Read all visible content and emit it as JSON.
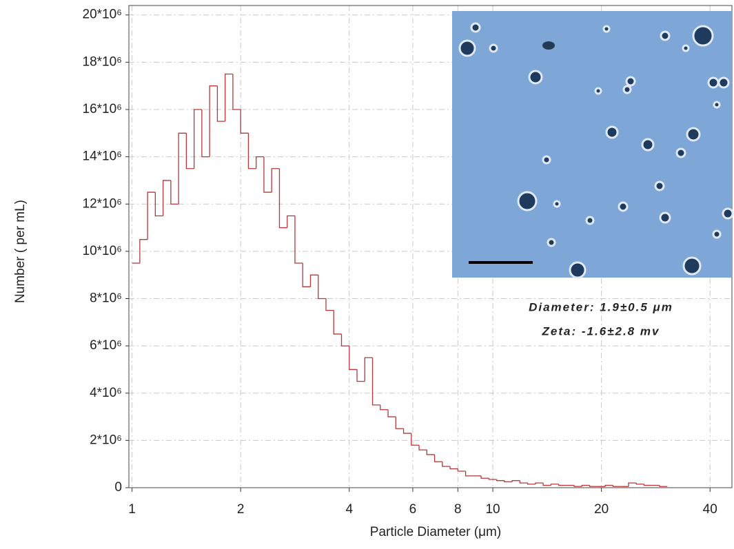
{
  "chart_data": {
    "type": "histogram",
    "xlabel": "Particle Diameter (μm)",
    "ylabel": "Number ( per mL)",
    "annotations": [
      "Diameter: 1.9±0.5 μm",
      "Zeta: -1.6±2.8 mv"
    ],
    "color": "#b5373a",
    "xscale": "log",
    "grid": true,
    "xlim": [
      0.98,
      46
    ],
    "ylim": [
      0,
      20400000
    ],
    "xticks": [
      1,
      2,
      4,
      6,
      8,
      10,
      20,
      40
    ],
    "yticks": [
      0,
      {
        "value": 2000000,
        "label": "2*10⁶"
      },
      {
        "value": 4000000,
        "label": "4*10⁶"
      },
      {
        "value": 6000000,
        "label": "6*10⁶"
      },
      {
        "value": 8000000,
        "label": "8*10⁶"
      },
      {
        "value": 10000000,
        "label": "10*10⁶"
      },
      {
        "value": 12000000,
        "label": "12*10⁶"
      },
      {
        "value": 14000000,
        "label": "14*10⁶"
      },
      {
        "value": 16000000,
        "label": "16*10⁶"
      },
      {
        "value": 18000000,
        "label": "18*10⁶"
      },
      {
        "value": 20000000,
        "label": "20*10⁶"
      }
    ],
    "bins": [
      1,
      1.0508,
      1.1041,
      1.1601,
      1.219,
      1.2809,
      1.3459,
      1.4142,
      1.486,
      1.5614,
      1.6407,
      1.724,
      1.8114,
      1.9033,
      2,
      2.1015,
      2.2082,
      2.3203,
      2.438,
      2.5618,
      2.6918,
      2.8284,
      2.9719,
      3.1228,
      3.2813,
      3.4479,
      3.6229,
      3.8067,
      4,
      4.2031,
      4.4164,
      4.6406,
      4.876,
      5.1236,
      5.3836,
      5.6569,
      5.9439,
      6.2457,
      6.5626,
      6.8958,
      7.2458,
      7.6134,
      8,
      8.4062,
      8.8328,
      9.2812,
      9.752,
      10.2472,
      10.7672,
      11.3137,
      11.8878,
      12.4914,
      13.1252,
      13.7916,
      14.4916,
      15.2268,
      16,
      16.8124,
      17.6656,
      18.5624,
      19.504,
      20.4944,
      21.5344,
      22.6274,
      23.7756,
      24.9828,
      26.2504,
      27.5832,
      28.9832,
      30.4536
    ],
    "values": [
      9500000,
      10500000,
      12500000,
      11500000,
      13000000,
      12000000,
      15000000,
      13500000,
      16000000,
      14000000,
      17000000,
      15500000,
      17500000,
      16000000,
      15000000,
      13500000,
      14000000,
      12500000,
      13500000,
      11000000,
      11500000,
      9500000,
      8500000,
      9000000,
      8000000,
      7500000,
      6500000,
      6000000,
      5000000,
      4500000,
      5500000,
      3500000,
      3300000,
      3000000,
      2500000,
      2300000,
      1800000,
      1600000,
      1400000,
      1100000,
      900000,
      800000,
      700000,
      500000,
      500000,
      400000,
      350000,
      300000,
      250000,
      300000,
      200000,
      150000,
      200000,
      100000,
      150000,
      100000,
      100000,
      50000,
      100000,
      50000,
      50000,
      100000,
      50000,
      50000,
      200000,
      150000,
      100000,
      100000,
      50000
    ]
  }
}
